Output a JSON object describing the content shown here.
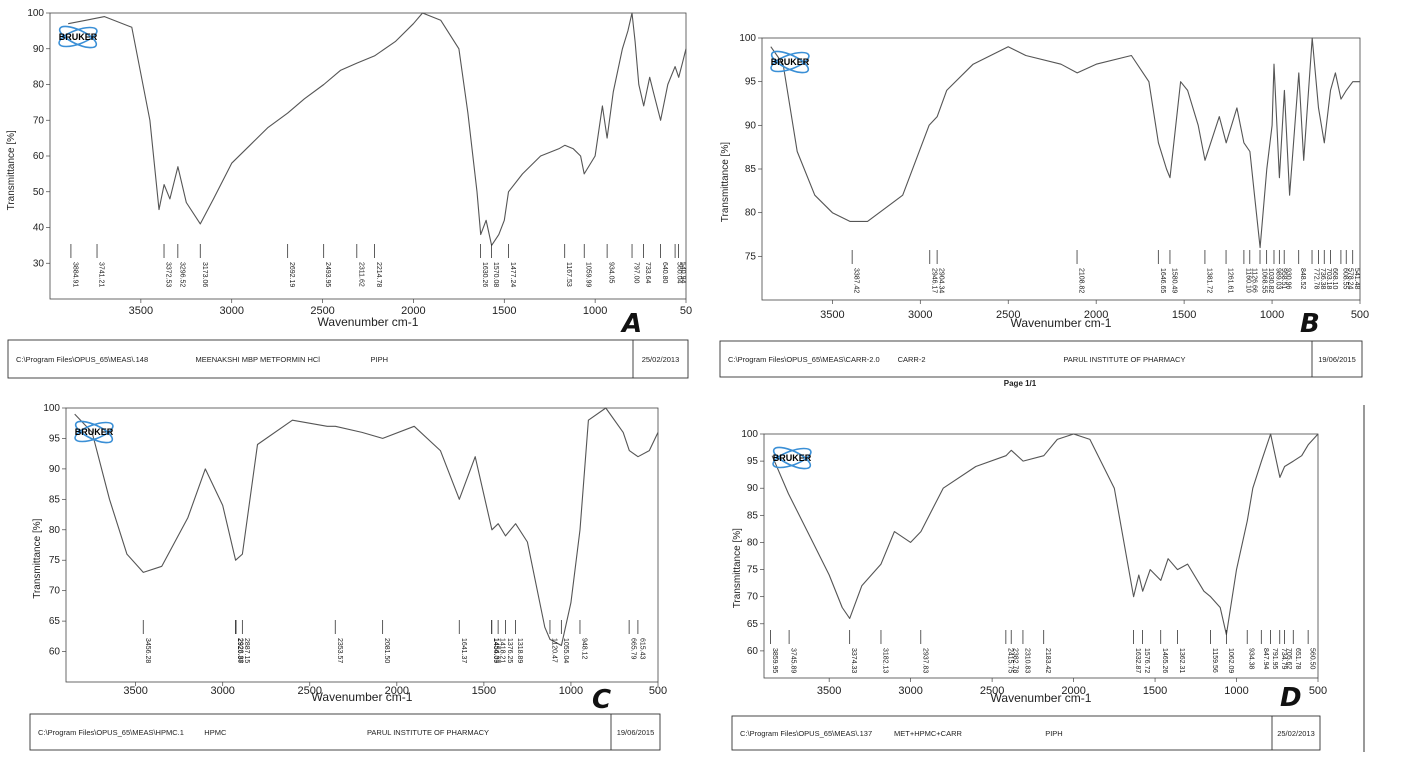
{
  "chart_data": [
    {
      "type": "line",
      "panel_label": "A",
      "logo": "BRUKER",
      "xlabel": "Wavenumber cm-1",
      "ylabel": "Transmittance [%]",
      "xlim": [
        4000,
        500
      ],
      "ylim": [
        20,
        100
      ],
      "x_ticks": [
        "3500",
        "3000",
        "2500",
        "2000",
        "1500",
        "1000",
        "50"
      ],
      "y_ticks": [
        "30",
        "40",
        "50",
        "60",
        "70",
        "80",
        "90",
        "100"
      ],
      "peak_labels": [
        "3884.91",
        "3741.21",
        "3372.53",
        "3296.52",
        "3173.06",
        "2692.19",
        "2493.95",
        "2311.62",
        "2214.78",
        "1630.26",
        "1570.08",
        "1477.24",
        "1167.53",
        "1059.99",
        "934.05",
        "797.00",
        "733.64",
        "640.80",
        "560.04",
        "540.94"
      ],
      "footer": {
        "path": "C:\\Program Files\\OPUS_65\\MEAS\\.148",
        "sample": "MEENAKSHI MBP METFORMIN HCl",
        "operator": "PIPH",
        "date": "25/02/2013"
      },
      "series": [
        {
          "x": [
            3900,
            3800,
            3700,
            3550,
            3450,
            3400,
            3372,
            3340,
            3296,
            3250,
            3173,
            3100,
            3000,
            2900,
            2800,
            2692,
            2600,
            2493,
            2400,
            2311,
            2214,
            2100,
            2000,
            1950,
            1850,
            1750,
            1700,
            1650,
            1630,
            1600,
            1570,
            1530,
            1500,
            1477,
            1400,
            1300,
            1200,
            1167,
            1120,
            1080,
            1060,
            1000,
            960,
            934,
            900,
            850,
            820,
            797,
            780,
            760,
            733,
            700,
            680,
            640,
            600,
            560,
            540,
            520,
            500
          ],
          "y": [
            97,
            98,
            99,
            96,
            70,
            45,
            52,
            48,
            57,
            47,
            41,
            48,
            58,
            63,
            68,
            72,
            76,
            80,
            84,
            86,
            88,
            92,
            97,
            100,
            98,
            90,
            72,
            50,
            38,
            42,
            35,
            38,
            42,
            50,
            55,
            60,
            62,
            63,
            62,
            60,
            55,
            60,
            74,
            65,
            78,
            90,
            95,
            100,
            92,
            80,
            74,
            82,
            78,
            70,
            80,
            85,
            82,
            86,
            90
          ]
        }
      ]
    },
    {
      "type": "line",
      "panel_label": "B",
      "logo": "BRUKER",
      "xlabel": "Wavenumber cm-1",
      "ylabel": "Transmittance [%]",
      "xlim": [
        3900,
        500
      ],
      "ylim": [
        70,
        100
      ],
      "x_ticks": [
        "3500",
        "3000",
        "2500",
        "2000",
        "1500",
        "1000",
        "500"
      ],
      "y_ticks": [
        "75",
        "80",
        "85",
        "90",
        "95",
        "100"
      ],
      "peak_labels": [
        "3387.42",
        "2946.17",
        "2904.34",
        "2108.82",
        "1646.65",
        "1580.49",
        "1381.72",
        "1261.61",
        "1160.10",
        "1126.66",
        "1068.55",
        "1030.82",
        "989.03",
        "958.51",
        "930.96",
        "848.52",
        "772.78",
        "736.38",
        "703.18",
        "668.10",
        "608.55",
        "578.24",
        "541.48"
      ],
      "footer": {
        "path": "C:\\Program Files\\OPUS_65\\MEAS\\CARR-2.0",
        "sample": "CARR-2",
        "operator": "PARUL INSTITUTE OF PHARMACY",
        "date": "19/06/2015"
      },
      "page": "Page 1/1",
      "series": [
        {
          "x": [
            3850,
            3780,
            3700,
            3600,
            3500,
            3400,
            3300,
            3100,
            2950,
            2904,
            2850,
            2700,
            2500,
            2400,
            2200,
            2108,
            2000,
            1800,
            1700,
            1646,
            1600,
            1580,
            1520,
            1480,
            1420,
            1381,
            1300,
            1261,
            1200,
            1160,
            1126,
            1100,
            1068,
            1030,
            1000,
            989,
            958,
            930,
            900,
            848,
            820,
            772,
            736,
            703,
            668,
            640,
            608,
            578,
            541,
            500
          ],
          "y": [
            99,
            97,
            87,
            82,
            80,
            79,
            79,
            82,
            90,
            91,
            94,
            97,
            99,
            98,
            97,
            96,
            97,
            98,
            95,
            88,
            85,
            84,
            95,
            94,
            90,
            86,
            91,
            88,
            92,
            88,
            87,
            82,
            76,
            85,
            90,
            97,
            84,
            94,
            82,
            96,
            86,
            100,
            92,
            88,
            94,
            96,
            93,
            94,
            95,
            95
          ]
        }
      ]
    },
    {
      "type": "line",
      "panel_label": "C",
      "logo": "BRUKER",
      "xlabel": "Wavenumber cm-1",
      "ylabel": "Transmittance [%]",
      "xlim": [
        3900,
        500
      ],
      "ylim": [
        55,
        100
      ],
      "x_ticks": [
        "3500",
        "3000",
        "2500",
        "2000",
        "1500",
        "1000",
        "500"
      ],
      "y_ticks": [
        "60",
        "65",
        "70",
        "75",
        "80",
        "85",
        "90",
        "95",
        "100"
      ],
      "peak_labels": [
        "3456.28",
        "2926.87",
        "2923.38",
        "2887.15",
        "2353.57",
        "2081.50",
        "1641.37",
        "1454.37",
        "1456.09",
        "1418.21",
        "1376.25",
        "1318.89",
        "1120.47",
        "1055.04",
        "948.12",
        "665.79",
        "615.43"
      ],
      "footer": {
        "path": "C:\\Program Files\\OPUS_65\\MEAS\\HPMC.1",
        "sample": "HPMC",
        "operator": "PARUL INSTITUTE OF PHARMACY",
        "date": "19/06/2015"
      },
      "series": [
        {
          "x": [
            3850,
            3750,
            3650,
            3550,
            3456,
            3350,
            3200,
            3100,
            3000,
            2926,
            2887,
            2800,
            2600,
            2400,
            2353,
            2200,
            2081,
            1900,
            1750,
            1641,
            1550,
            1454,
            1418,
            1376,
            1318,
            1250,
            1150,
            1120,
            1055,
            1000,
            948,
            900,
            800,
            700,
            665,
            615,
            550,
            500
          ],
          "y": [
            99,
            96,
            85,
            76,
            73,
            74,
            82,
            90,
            84,
            75,
            76,
            94,
            98,
            97,
            97,
            96,
            95,
            97,
            93,
            85,
            92,
            80,
            81,
            79,
            81,
            78,
            64,
            62,
            61,
            68,
            80,
            98,
            101,
            96,
            93,
            92,
            93,
            96
          ]
        }
      ]
    },
    {
      "type": "line",
      "panel_label": "D",
      "logo": "BRUKER",
      "xlabel": "Wavenumber cm-1",
      "ylabel": "Transmittance [%]",
      "xlim": [
        3900,
        500
      ],
      "ylim": [
        55,
        100
      ],
      "x_ticks": [
        "3500",
        "3000",
        "2500",
        "2000",
        "1500",
        "1000",
        "500"
      ],
      "y_ticks": [
        "60",
        "65",
        "70",
        "75",
        "80",
        "85",
        "90",
        "95",
        "100"
      ],
      "peak_labels": [
        "3859.95",
        "3745.89",
        "3374.33",
        "3182.13",
        "2937.83",
        "2415.75",
        "2382.78",
        "2310.83",
        "2183.42",
        "1632.87",
        "1576.72",
        "1465.26",
        "1362.31",
        "1159.56",
        "1062.09",
        "934.38",
        "847.94",
        "791.95",
        "734.79",
        "705.62",
        "651.78",
        "560.50"
      ],
      "footer": {
        "path": "C:\\Program Files\\OPUS_65\\MEAS\\.137",
        "sample": "MET+HPMC+CARR",
        "operator": "PIPH",
        "date": "25/02/2013"
      },
      "series": [
        {
          "x": [
            3850,
            3750,
            3600,
            3500,
            3420,
            3374,
            3300,
            3182,
            3100,
            3000,
            2937,
            2800,
            2600,
            2415,
            2382,
            2310,
            2183,
            2100,
            2000,
            1900,
            1750,
            1632,
            1600,
            1576,
            1530,
            1465,
            1420,
            1362,
            1300,
            1200,
            1159,
            1100,
            1062,
            1000,
            934,
            900,
            847,
            791,
            734,
            705,
            651,
            600,
            560,
            500
          ],
          "y": [
            96,
            89,
            80,
            74,
            68,
            66,
            72,
            76,
            82,
            80,
            82,
            90,
            94,
            96,
            97,
            95,
            96,
            99,
            100,
            99,
            90,
            70,
            74,
            71,
            75,
            73,
            77,
            75,
            76,
            71,
            70,
            68,
            63,
            75,
            84,
            90,
            95,
            100,
            92,
            94,
            95,
            96,
            98,
            101
          ]
        }
      ]
    }
  ]
}
